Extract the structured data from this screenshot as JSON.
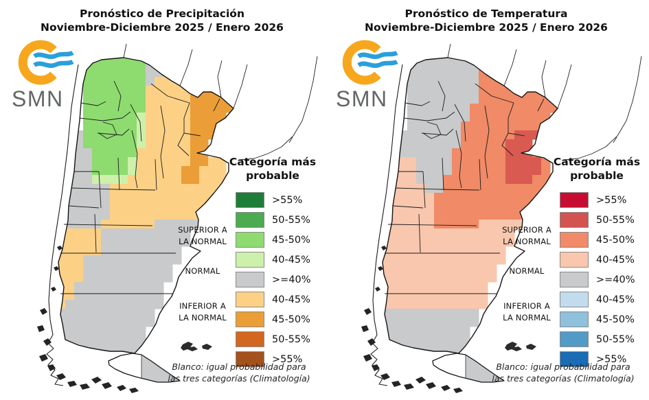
{
  "panels": [
    {
      "id": "precipitation",
      "title_line1": "Pronóstico de Precipitación",
      "title_line2": "Noviembre-Diciembre 2025 / Enero 2026",
      "logo_text": "SMN",
      "legend": {
        "title_line1": "Categoría más",
        "title_line2": "probable",
        "entries": [
          {
            "label": ">55%",
            "color": "#1e7d36"
          },
          {
            "label": "50-55%",
            "color": "#4caa51"
          },
          {
            "label": "45-50%",
            "color": "#8edb70"
          },
          {
            "label": "40-45%",
            "color": "#cdf0ab"
          },
          {
            "label": ">=40%",
            "color": "#c9cacb"
          },
          {
            "label": "40-45%",
            "color": "#fcd186"
          },
          {
            "label": "45-50%",
            "color": "#eb9e37"
          },
          {
            "label": "50-55%",
            "color": "#d4671f"
          },
          {
            "label": ">55%",
            "color": "#a4511d"
          }
        ],
        "category_labels": [
          {
            "line1": "SUPERIOR A",
            "line2": "LA NORMAL"
          },
          {
            "line1": "NORMAL",
            "line2": ""
          },
          {
            "line1": "INFERIOR A",
            "line2": "LA NORMAL"
          }
        ]
      },
      "note_line1": "Blanco: igual probabilidad para",
      "note_line2": "las tres categorías (Climatología)",
      "map": {
        "palette": {
          "G": "#8edb70",
          "g": "#cdf0ab",
          "N": "#c9cacb",
          "t": "#fcd186",
          "O": "#eb9e37"
        },
        "grid": [
          "........................",
          ".........GGGGNNtt.......",
          ".......GGGGGGGNNttt.....",
          ".......GGGGGGGNNtttt....",
          ".......GGGGGGGNtttttOO..",
          ".......GGGGGGGttttttOOO.",
          ".......GGGGGGGtttttOOOOO",
          ".......GGGGGGGtttttOOOOO",
          ".......GGGGGGgtttttOOOO.",
          ".......GGGGGGgtttttOOO..",
          "......NGGGGGGgtttttOOO..",
          "......NGGGGGGgtttttOO...",
          ".....NNNGGGGGttttttOO...",
          ".....NNNGGGGgttttttOOtt.",
          ".....NNNGGGGgtttttOOttt.",
          ".....NNNggggttttttOOttt.",
          ".....NNNNNttttttttttttt.",
          ".....NNNNNttttttttttttt.",
          "....NNNNNNtttttttttttt..",
          "....NNNNNNttttttttttt...",
          "....NNNNNttttttNNNNN....",
          "....tttttNNNNNNNNNN.....",
          "....tttttNNNNNNNNNN.....",
          "....tttttNNNNNNNNN......",
          "....tttNNNNNNNNNNN......",
          "....tttNNNNNNNNNN.......",
          "....tttNNNNNNNNNN.......",
          "....ttNNNNNNNNNN........",
          "....ttNNNNNNNNNN........",
          "....tNNNNNNNNNNN........",
          "....NNNNNNNNNNN.........",
          "....NNNNNNNNNNN.........",
          "....NNNNNNNNNN..........",
          "....NNNNNNNNNN..........",
          ".....NNNNNNNNN..........",
          ".........NNNNNN.........",
          ".........NNNNNNNN.......",
          ".........NNNNNNNNN......",
          "..........NNNNNNN.......",
          "........................"
        ]
      }
    },
    {
      "id": "temperature",
      "title_line1": "Pronóstico de Temperatura",
      "title_line2": "Noviembre-Diciembre 2025 / Enero 2026",
      "logo_text": "SMN",
      "legend": {
        "title_line1": "Categoría más",
        "title_line2": "probable",
        "entries": [
          {
            "label": ">55%",
            "color": "#c60c30"
          },
          {
            "label": "50-55%",
            "color": "#d25350"
          },
          {
            "label": "45-50%",
            "color": "#f18a68"
          },
          {
            "label": "40-45%",
            "color": "#f8c7ad"
          },
          {
            "label": ">=40%",
            "color": "#c9cacb"
          },
          {
            "label": "40-45%",
            "color": "#c2dcee"
          },
          {
            "label": "45-50%",
            "color": "#8fc0dc"
          },
          {
            "label": "50-55%",
            "color": "#529bc7"
          },
          {
            "label": ">55%",
            "color": "#1a6cb5"
          }
        ],
        "category_labels": [
          {
            "line1": "SUPERIOR A",
            "line2": "LA NORMAL"
          },
          {
            "line1": "NORMAL",
            "line2": ""
          },
          {
            "line1": "INFERIOR A",
            "line2": "LA NORMAL"
          }
        ]
      },
      "note_line1": "Blanco: igual probabilidad para",
      "note_line2": "las tres categorías (Climatología)",
      "map": {
        "palette": {
          "N": "#c9cacb",
          "r": "#f08a67",
          "R": "#d85a50",
          "p": "#f8c7ad"
        },
        "grid": [
          "........................",
          ".........NNNNNrrr.......",
          ".......NNNNNNNNrrrr.....",
          ".......NNNNNNNNrrrrr....",
          ".......NNNNNNNNrrrrrrr..",
          ".......NNNNNNNNrrrrrrrr.",
          ".......NNNNNNNNrrrrrrrrr",
          ".......NNNNNNNrrrrrrrrrr",
          ".......NNNNNNNrrrrrrrrr.",
          ".......NNNNNNrrrrrrrrr..",
          "......NNNNNNNrrrrrrRRR..",
          "......NNNNNNNrrrrrRRR...",
          ".....NNNNNNNrrrrrrRRRrr.",
          ".....pppNNNNrrrrrrRRRRr.",
          ".....pppNNNNrrrrrrRRRRr.",
          ".....pppNNNrrrrrrrRRRrr.",
          ".....ppppNNrrrrrrrrrrrr.",
          ".....ppppprrrrrrrrrrrrr.",
          "....pppppprrrrrrrrrrrr..",
          "....pppppprrrrrrrrrrr...",
          "....pppppprrrrrppppp....",
          "....ppppppppppppppp.....",
          "....ppppppppppppppp.....",
          "....pppppppppppppp......",
          "....pppppppppppppp......",
          "....ppppppppppppp.......",
          "....ppppppppppppp.......",
          "....pppppppppppp........",
          "....pppppppppppp........",
          "....pppppppppppp........",
          "....NNNNNNNNNNN.........",
          "....NNNNNNNNNNN.........",
          "....NNNNNNNNNN..........",
          "....NNNNNNNNNN..........",
          ".....NNNNNNNNN..........",
          ".........NNNNNN.........",
          ".........NNNNNNNN.......",
          ".........NNNNNNNNN......",
          "..........NNNNNNN.......",
          "........................"
        ]
      }
    }
  ]
}
